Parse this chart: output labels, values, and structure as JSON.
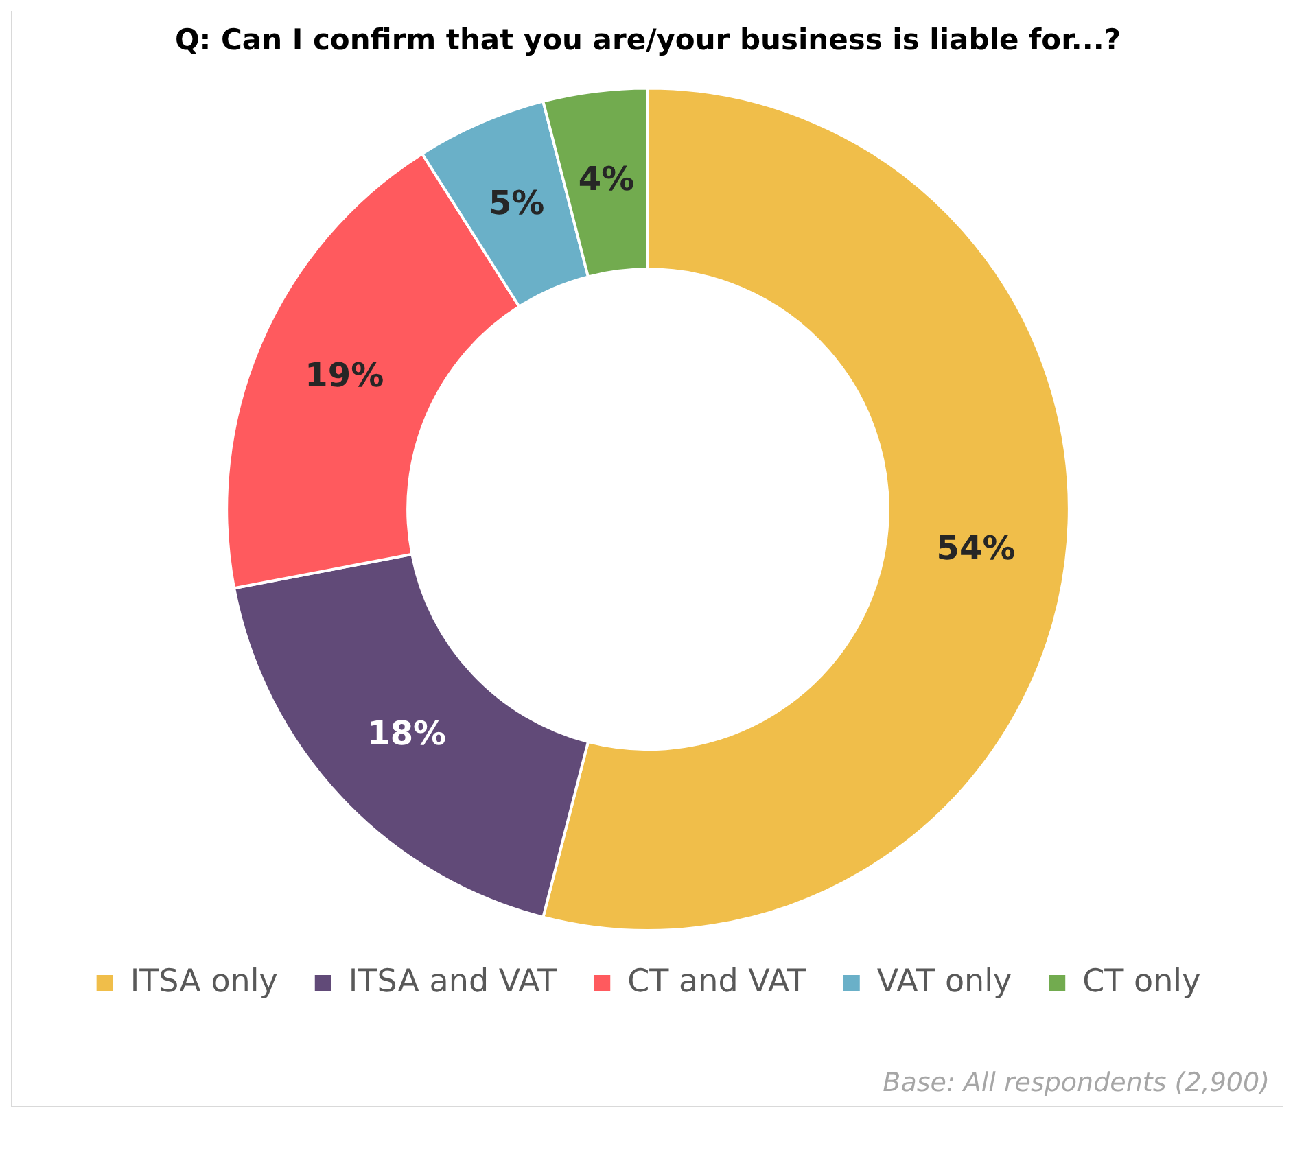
{
  "chart_data": {
    "type": "donut",
    "title": "Q: Can I confirm that you are/your business is liable for...?",
    "categories": [
      "ITSA only",
      "ITSA and VAT",
      "CT and VAT",
      "VAT only",
      "CT only"
    ],
    "values": [
      54,
      18,
      19,
      5,
      4
    ],
    "colors": [
      "#f0be4a",
      "#614a78",
      "#ff5a5e",
      "#6ab0c8",
      "#72ab4f"
    ],
    "value_labels": [
      "54%",
      "18%",
      "19%",
      "5%",
      "4%"
    ],
    "legend": "bottom",
    "annotations": [
      "Base: All  respondents (2,900)"
    ]
  }
}
